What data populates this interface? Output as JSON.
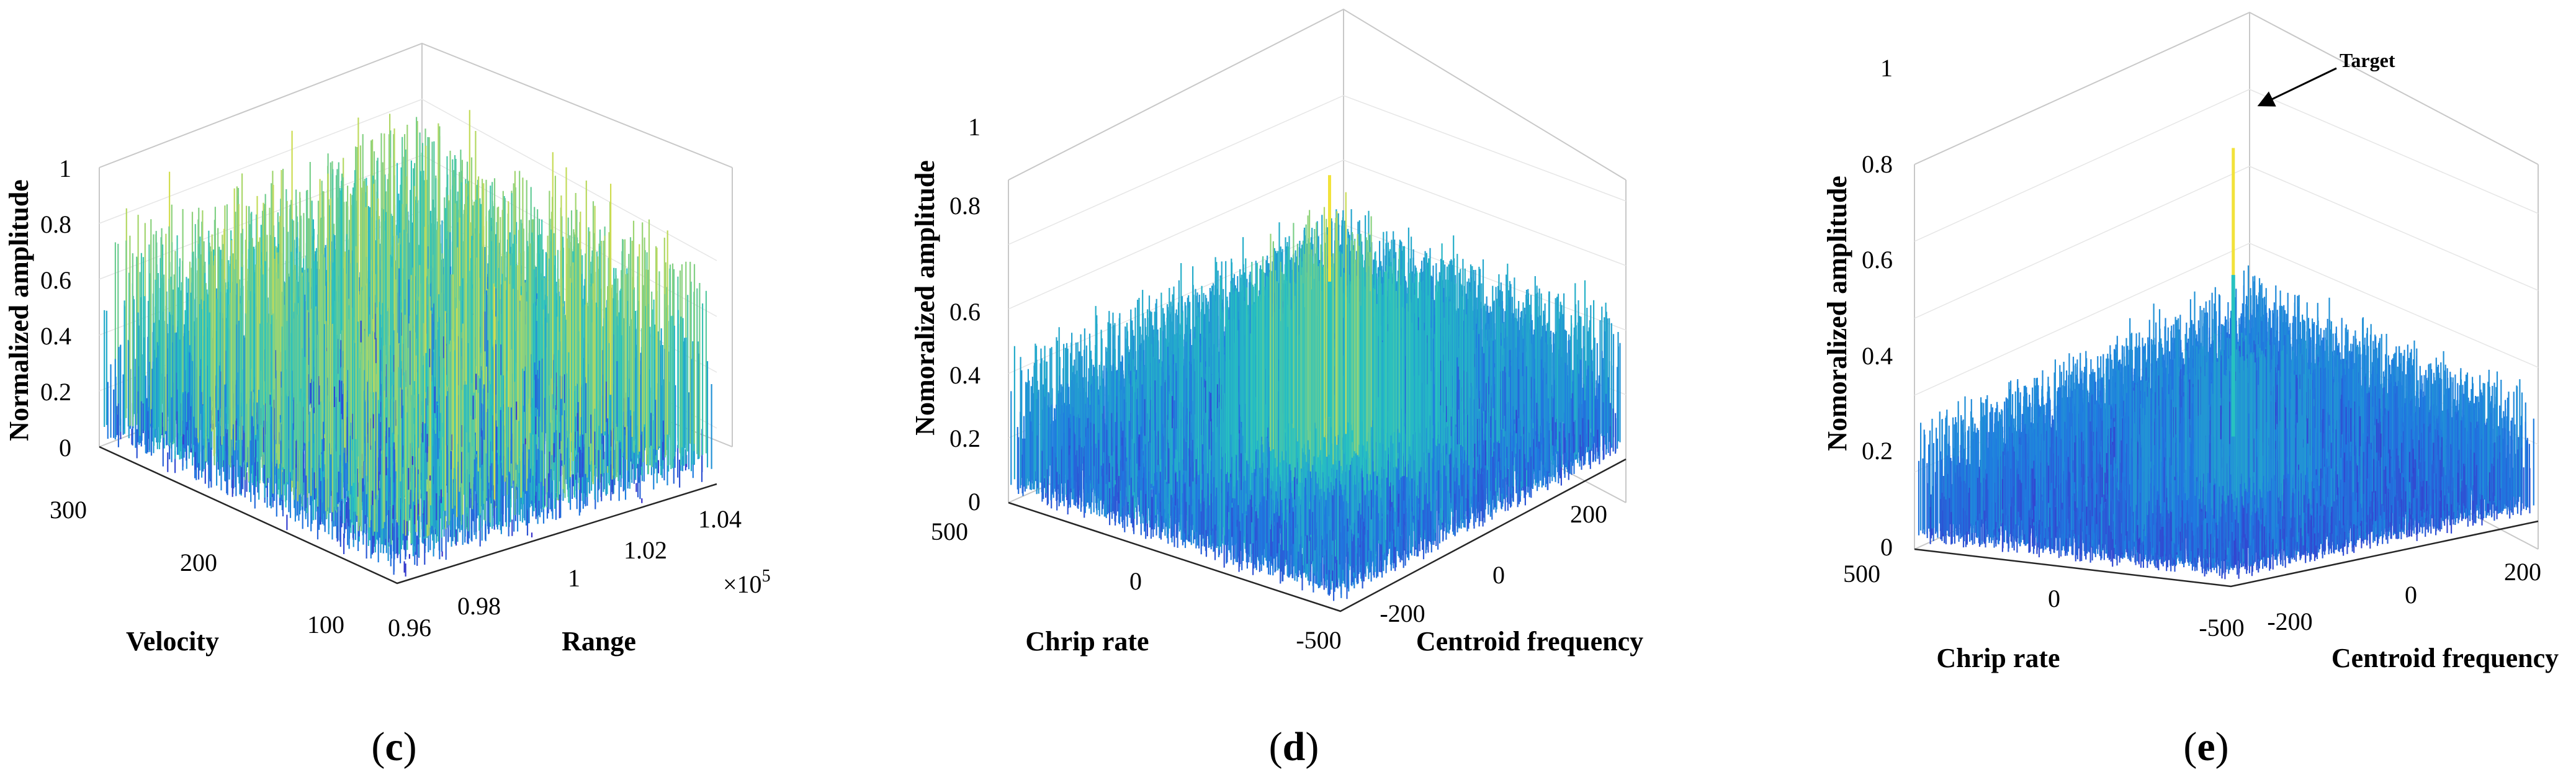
{
  "figure_panels": [
    {
      "label_open": "(",
      "label_letter": "c",
      "label_close": ")"
    },
    {
      "label_open": "(",
      "label_letter": "d",
      "label_close": ")"
    },
    {
      "label_open": "(",
      "label_letter": "e",
      "label_close": ")"
    }
  ],
  "colors": {
    "low": "#3b2cc9",
    "mid": "#1f7be0",
    "high": "#27c2c0",
    "peak": "#f2e23a",
    "axis": "#262626",
    "grid": "#e6e6e6"
  },
  "chart_data": [
    {
      "type": "surface3d",
      "panel": "c",
      "zlabel": "Normalized amplitude",
      "xlabel": "Velocity",
      "ylabel": "Range",
      "z_ticks": [
        "0",
        "0.2",
        "0.4",
        "0.6",
        "0.8",
        "1"
      ],
      "x_ticks": [
        "300",
        "200",
        "100"
      ],
      "y_ticks": [
        "0.96",
        "0.98",
        "1",
        "1.02",
        "1.04"
      ],
      "y_exponent_base": "×10",
      "y_exponent_power": "5",
      "zlim": [
        0,
        1
      ],
      "xlim": [
        80,
        320
      ],
      "ylim": [
        95500,
        104500
      ],
      "noise_mean": 0.45,
      "noise_spread": 0.45,
      "peak_value": 0
    },
    {
      "type": "surface3d",
      "panel": "d",
      "zlabel": "Nomoralized amplitude",
      "xlabel": "Chrip rate",
      "ylabel": "Centroid frequency",
      "z_ticks": [
        "0",
        "0.2",
        "0.4",
        "0.6",
        "0.8",
        "1"
      ],
      "x_ticks": [
        "500",
        "0",
        "-500"
      ],
      "y_ticks": [
        "-200",
        "0",
        "200"
      ],
      "zlim": [
        0,
        1
      ],
      "xlim": [
        -600,
        600
      ],
      "ylim": [
        -300,
        300
      ],
      "noise_mean": 0.3,
      "noise_spread": 0.22,
      "center_boost": 0.45,
      "peak_value": 0.95
    },
    {
      "type": "surface3d",
      "panel": "e",
      "zlabel": "Nomoralized amplitude",
      "xlabel": "Chrip rate",
      "ylabel": "Centroid frequency",
      "z_ticks": [
        "0",
        "0.2",
        "0.4",
        "0.6",
        "0.8",
        "1"
      ],
      "x_ticks": [
        "500",
        "0",
        "-500"
      ],
      "y_ticks": [
        "-200",
        "0",
        "200"
      ],
      "zlim": [
        0,
        1
      ],
      "xlim": [
        -600,
        600
      ],
      "ylim": [
        -300,
        300
      ],
      "noise_mean": 0.22,
      "noise_spread": 0.15,
      "center_boost": 0.12,
      "peak_value": 0.95,
      "annotation": "Target"
    }
  ]
}
